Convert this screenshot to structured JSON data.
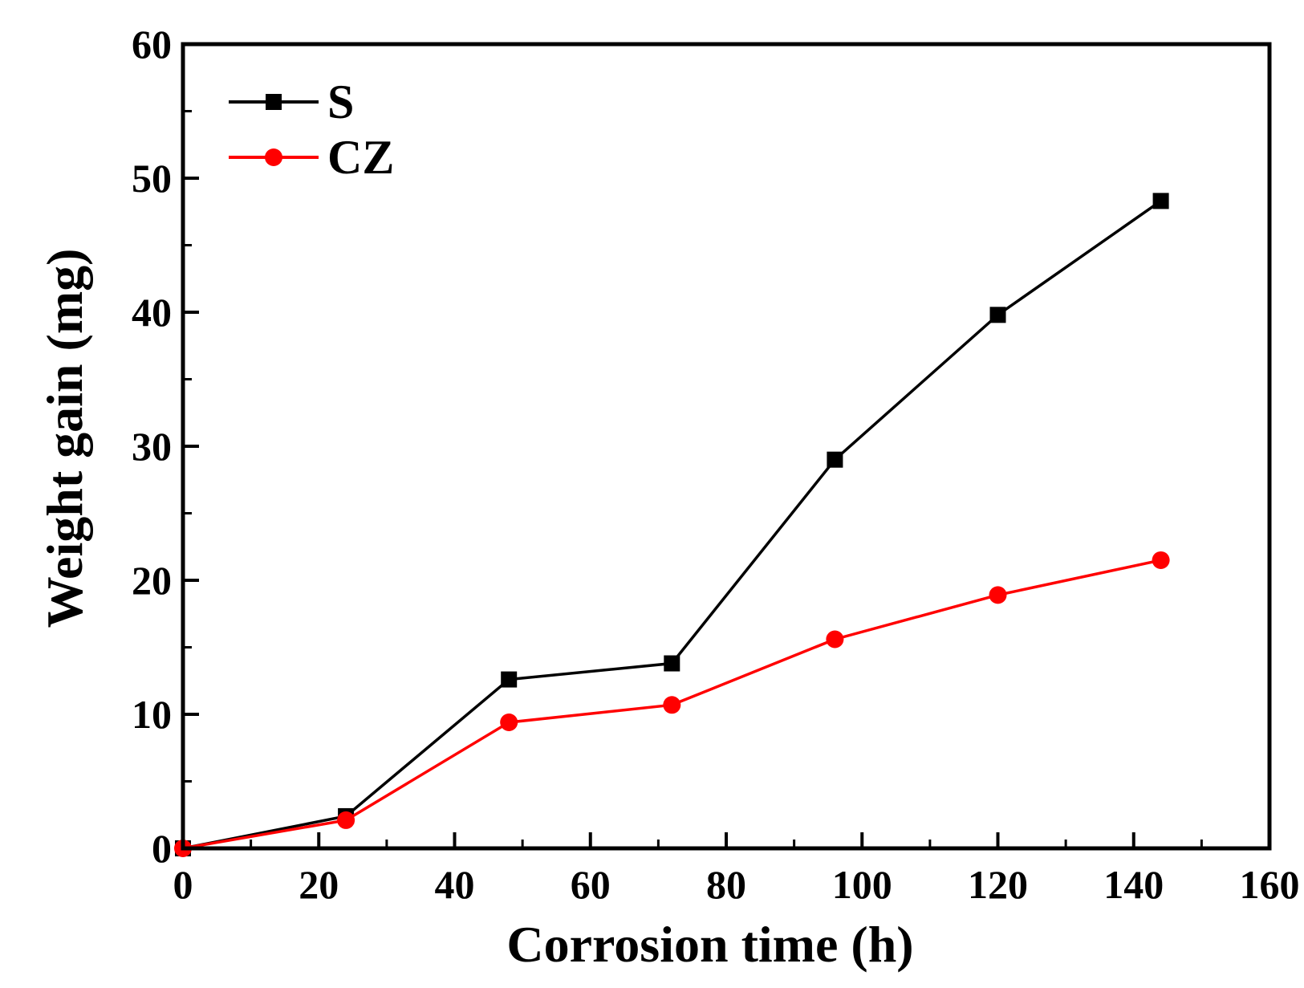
{
  "chart_data": {
    "type": "line",
    "title": "",
    "xlabel": "Corrosion time (h)",
    "ylabel": "Weight gain (mg)",
    "xlim": [
      0,
      160
    ],
    "ylim": [
      0,
      60
    ],
    "xticks": [
      0,
      20,
      40,
      60,
      80,
      100,
      120,
      140,
      160
    ],
    "yticks": [
      0,
      10,
      20,
      30,
      40,
      50,
      60
    ],
    "grid": false,
    "legend_position": "top-left",
    "series": [
      {
        "name": "S",
        "color": "#000000",
        "marker": "square",
        "x": [
          0,
          24,
          48,
          72,
          96,
          120,
          144
        ],
        "y": [
          0,
          2.4,
          12.6,
          13.8,
          29.0,
          39.8,
          48.3
        ]
      },
      {
        "name": "CZ",
        "color": "#ff0000",
        "marker": "circle",
        "x": [
          0,
          24,
          48,
          72,
          96,
          120,
          144
        ],
        "y": [
          0,
          2.1,
          9.4,
          10.7,
          15.6,
          18.9,
          21.5
        ]
      }
    ]
  }
}
